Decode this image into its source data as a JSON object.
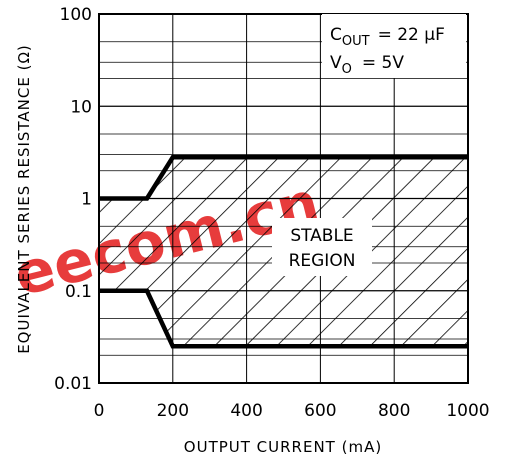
{
  "chart_data": {
    "type": "line",
    "xlabel": "OUTPUT CURRENT (mA)",
    "ylabel": "EQUIVALENT SERIES RESISTANCE (Ω)",
    "x_ticks": [
      "0",
      "200",
      "400",
      "600",
      "800",
      "1000"
    ],
    "y_ticks": [
      "0.01",
      "0.1",
      "1",
      "10",
      "100"
    ],
    "xlim": [
      0,
      1000
    ],
    "ylim": [
      0.01,
      100
    ],
    "y_scale": "log",
    "grid": true,
    "annotation": {
      "cap_line": "C",
      "cap_sub": "OUT",
      "cap_value": "= 22 μF",
      "vo_line": "V",
      "vo_sub": "O",
      "vo_value": "= 5V"
    },
    "region_label": [
      "STABLE",
      "REGION"
    ],
    "series": [
      {
        "color": "#000000",
        "x": [
          0,
          130,
          200,
          1000
        ],
        "y": [
          1,
          1,
          2.8,
          2.8
        ]
      },
      {
        "color": "#000000",
        "x": [
          0,
          130,
          200,
          1000
        ],
        "y": [
          0.1,
          0.1,
          0.025,
          0.025
        ]
      }
    ],
    "watermark": {
      "text": "eecom.cn",
      "color": "#e31b1b"
    }
  }
}
